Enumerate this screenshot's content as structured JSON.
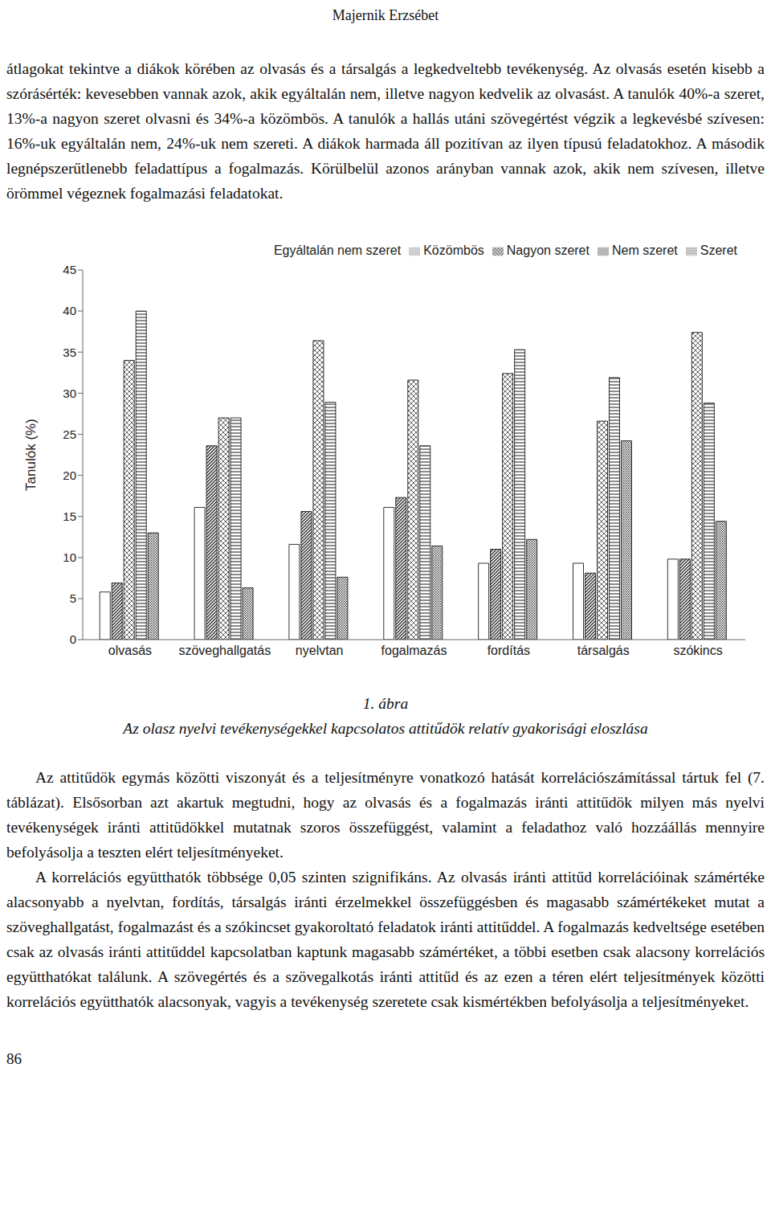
{
  "header": "Majernik Erzsébet",
  "paragraphs_top": [
    "átlagokat tekintve a diákok körében az olvasás és a társalgás a legkedveltebb tevékenység. Az olvasás esetén kisebb a szórásérték: kevesebben vannak azok, akik egyáltalán nem, illetve nagyon kedvelik az olvasást. A tanulók 40%-a szeret, 13%-a nagyon szeret olvasni és 34%-a közömbös. A tanulók a hallás utáni szövegértést végzik a legkevésbé szívesen: 16%-uk egyáltalán nem, 24%-uk nem szereti. A diákok harmada áll pozitívan az ilyen típusú feladatokhoz. A második legnépszerűtlenebb feladattípus a fogalmazás. Körülbelül azonos arányban vannak azok, akik nem szívesen, illetve örömmel végeznek fogalmazási feladatokat."
  ],
  "chart_data": {
    "type": "bar",
    "y_label": "Tanulók (%)",
    "categories": [
      "olvasás",
      "szöveghallgatás",
      "nyelvtan",
      "fogalmazás",
      "fordítás",
      "társalgás",
      "szókincs"
    ],
    "series": [
      {
        "name": "Egyáltalán nem szeret",
        "color": "#ffffff",
        "values": [
          5.8,
          16.1,
          11.6,
          16.1,
          9.3,
          9.3,
          9.8
        ]
      },
      {
        "name": "Nem szeret",
        "color": "#303030",
        "values": [
          6.9,
          23.6,
          15.6,
          17.3,
          11.0,
          8.1,
          9.8
        ]
      },
      {
        "name": "Közömbös",
        "color": "#505050",
        "values": [
          34,
          27,
          36.4,
          31.6,
          32.4,
          26.6,
          37.4
        ]
      },
      {
        "name": "Szeret",
        "color": "#404040",
        "values": [
          40,
          27,
          28.9,
          23.6,
          35.3,
          31.9,
          28.8
        ]
      },
      {
        "name": "Nagyon szeret",
        "color": "#202020",
        "values": [
          13,
          6.3,
          7.6,
          11.4,
          12.2,
          24.2,
          14.4
        ]
      }
    ],
    "ylim": [
      0,
      45
    ],
    "yticks": [
      0,
      5,
      10,
      15,
      20,
      25,
      30,
      35,
      40,
      45
    ],
    "grid": false,
    "legend": "top"
  },
  "caption": {
    "number": "1. ábra",
    "text": "Az olasz nyelvi tevékenységekkel kapcsolatos attitűdök relatív gyakorisági eloszlása"
  },
  "paragraphs_bottom": [
    "Az attitűdök egymás közötti viszonyát és a teljesítményre vonatkozó hatását korrelációszámítással tártuk fel (7. táblázat). Elsősorban azt akartuk megtudni, hogy az olvasás és a fogalmazás iránti attitűdök milyen más nyelvi tevékenységek iránti attitűdökkel mutatnak szoros összefüggést, valamint a feladathoz való hozzáállás mennyire befolyásolja a teszten elért teljesítményeket.",
    "A korrelációs együtthatók többsége 0,05 szinten szignifikáns. Az olvasás iránti attitűd korrelációinak számértéke alacsonyabb a nyelvtan, fordítás, társalgás iránti érzelmekkel összefüggésben és magasabb számértékeket mutat a szöveghallgatást, fogalmazást és a szókincset gyakoroltató feladatok iránti attitűddel. A fogalmazás kedveltsége esetében csak az olvasás iránti attitűddel kapcsolatban kaptunk magasabb számértéket, a többi esetben csak alacsony korrelációs együtthatókat találunk. A szövegértés és a szövegalkotás iránti attitűd és az ezen a téren elért teljesítmények közötti korrelációs együtthatók alacsonyak, vagyis a tevékenység szeretete csak kismértékben befolyásolja a teljesítményeket."
  ],
  "page_number": 86
}
